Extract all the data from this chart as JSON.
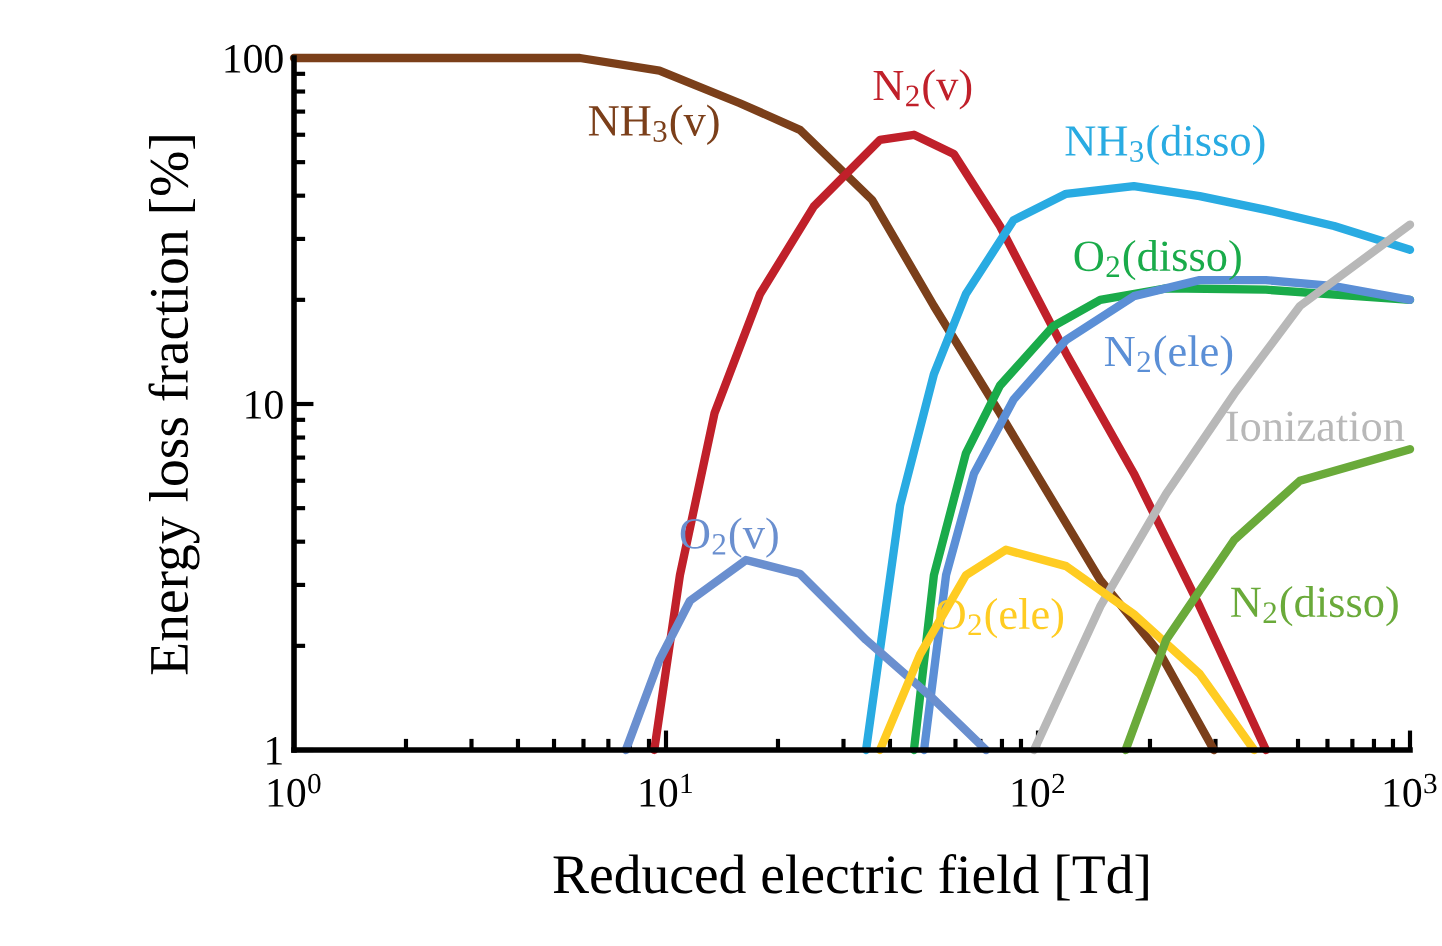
{
  "chart_data": {
    "type": "line",
    "xlabel": "Reduced electric field [Td]",
    "ylabel": "Energy loss fraction [%]",
    "log": "xy",
    "grid": false,
    "legend": false,
    "xlim": [
      1,
      1000
    ],
    "xticks": [
      {
        "value": 1,
        "label": "10$^{0}$"
      },
      {
        "value": 10,
        "label": "10$^{1}$"
      },
      {
        "value": 100,
        "label": "10$^{2}$"
      },
      {
        "value": 1000,
        "label": "10$^{3}$"
      }
    ],
    "ylim": [
      1,
      100
    ],
    "yticks": [
      1,
      10,
      100
    ],
    "series": [
      {
        "name": "NH$_{3}$(v)",
        "color": "#7b3f1a",
        "x": [
          1,
          5.87,
          9.6,
          15.8,
          22.9,
          35.8,
          52.5,
          79,
          147,
          213,
          297
        ],
        "values": [
          100,
          100,
          92,
          74,
          62,
          38.9,
          19.2,
          9.4,
          3.1,
          1.9,
          1
        ]
      },
      {
        "name": "N$_{2}$(v)",
        "color": "#c0202a",
        "x": [
          9.3,
          10.9,
          13.5,
          17.9,
          25,
          37.6,
          46.4,
          59.4,
          79,
          119,
          181,
          272,
          410
        ],
        "values": [
          1,
          3.2,
          9.4,
          20.8,
          37.3,
          58,
          60,
          52.8,
          32.7,
          14,
          6.3,
          2.6,
          1
        ]
      },
      {
        "name": "NH$_{3}$(disso)",
        "color": "#29abe2",
        "x": [
          34.5,
          42.6,
          52.5,
          64,
          86,
          119,
          181,
          272,
          410,
          625,
          1000
        ],
        "values": [
          1,
          5.1,
          12.2,
          20.8,
          34,
          40.5,
          42.6,
          39.9,
          36.4,
          32.7,
          27.9
        ]
      },
      {
        "name": "O$_{2}$(disso)",
        "color": "#1aab4a",
        "x": [
          46.4,
          52.5,
          64,
          79,
          110,
          147,
          221,
          410,
          1000
        ],
        "values": [
          1,
          3.2,
          7.2,
          11.3,
          16.8,
          20,
          21.6,
          21.4,
          20
        ]
      },
      {
        "name": "N$_{2}$(ele)",
        "color": "#5b8fd6",
        "x": [
          49.4,
          56.6,
          67.3,
          86,
          119,
          181,
          272,
          410,
          625,
          1000
        ],
        "values": [
          1,
          3.2,
          6.3,
          10.3,
          15.3,
          20.5,
          22.8,
          22.8,
          21.9,
          20
        ]
      },
      {
        "name": "Ionization",
        "color": "#b8b8b8",
        "x": [
          97.6,
          147,
          221,
          337,
          506,
          1000
        ],
        "values": [
          1,
          2.6,
          5.5,
          10.7,
          19.2,
          33
        ]
      },
      {
        "name": "O$_{2}$(v)",
        "color": "#6a8fcf",
        "x": [
          7.8,
          9.6,
          11.6,
          16.4,
          22.9,
          34.5,
          52.5,
          72.5
        ],
        "values": [
          1,
          1.82,
          2.7,
          3.54,
          3.23,
          2.08,
          1.4,
          1
        ]
      },
      {
        "name": "O$_{2}$(ele)",
        "color": "#ffcc22",
        "x": [
          37.6,
          48.2,
          64,
          82,
          119,
          181,
          272,
          381
        ],
        "values": [
          1,
          1.89,
          3.2,
          3.79,
          3.4,
          2.47,
          1.66,
          1
        ]
      },
      {
        "name": "N$_{2}$(disso)",
        "color": "#6aaa3a",
        "x": [
          172,
          221,
          337,
          506,
          1000
        ],
        "values": [
          1,
          2.08,
          4.05,
          6.0,
          7.4
        ]
      }
    ]
  }
}
